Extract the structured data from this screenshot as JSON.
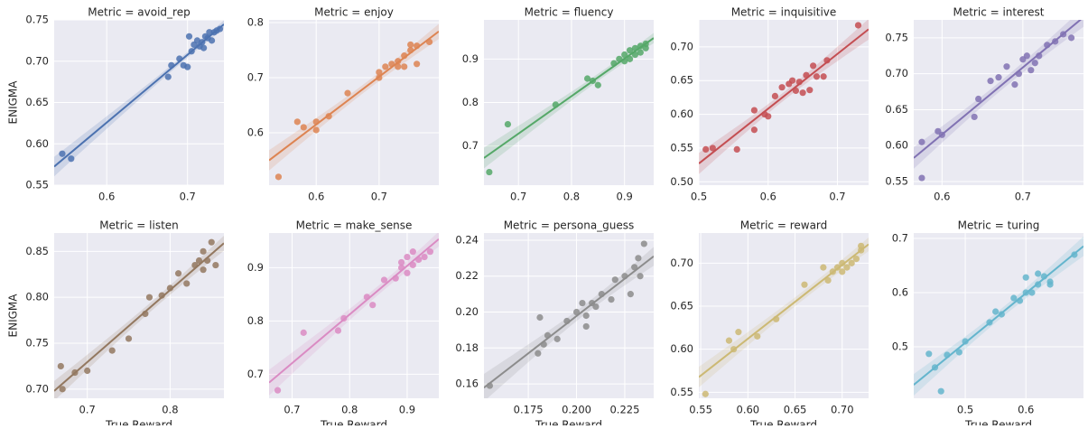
{
  "chart_data": [
    {
      "type": "scatter",
      "title": "Metric = avoid_rep",
      "ylabel": "ENIGMA",
      "color": "#4c72b0",
      "grid": true,
      "x": [
        0.545,
        0.556,
        0.676,
        0.68,
        0.69,
        0.695,
        0.7,
        0.702,
        0.705,
        0.708,
        0.712,
        0.715,
        0.718,
        0.72,
        0.722,
        0.725,
        0.727,
        0.73,
        0.733,
        0.736,
        0.74
      ],
      "y": [
        0.588,
        0.582,
        0.681,
        0.695,
        0.703,
        0.695,
        0.693,
        0.73,
        0.712,
        0.72,
        0.725,
        0.718,
        0.723,
        0.716,
        0.73,
        0.728,
        0.735,
        0.725,
        0.735,
        0.737,
        0.739
      ],
      "xlim": [
        0.535,
        0.745
      ],
      "xticks": [
        0.6,
        0.7
      ],
      "ylim": [
        0.55,
        0.75
      ],
      "yticks": [
        0.55,
        {
          "value": 0.6,
          "label": "0.60"
        },
        0.65,
        {
          "value": 0.7,
          "label": "0.70"
        },
        0.75
      ]
    },
    {
      "type": "scatter",
      "title": "Metric = enjoy",
      "color": "#dd8452",
      "grid": true,
      "x": [
        0.54,
        0.57,
        0.58,
        0.6,
        0.6,
        0.62,
        0.65,
        0.7,
        0.7,
        0.71,
        0.72,
        0.73,
        0.73,
        0.74,
        0.74,
        0.75,
        0.75,
        0.76,
        0.76,
        0.78
      ],
      "y": [
        0.52,
        0.62,
        0.61,
        0.62,
        0.605,
        0.63,
        0.672,
        0.7,
        0.71,
        0.72,
        0.725,
        0.73,
        0.72,
        0.72,
        0.74,
        0.76,
        0.75,
        0.758,
        0.725,
        0.765
      ],
      "xlim": [
        0.525,
        0.795
      ],
      "xticks": [
        0.6,
        0.7
      ],
      "ylim": [
        0.505,
        0.805
      ],
      "yticks": [
        0.6,
        0.7,
        0.8
      ]
    },
    {
      "type": "scatter",
      "title": "Metric = fluency",
      "color": "#55a868",
      "grid": true,
      "x": [
        0.645,
        0.68,
        0.77,
        0.83,
        0.84,
        0.85,
        0.88,
        0.89,
        0.9,
        0.9,
        0.91,
        0.91,
        0.92,
        0.92,
        0.93,
        0.93,
        0.94,
        0.94
      ],
      "y": [
        0.64,
        0.75,
        0.795,
        0.855,
        0.85,
        0.84,
        0.89,
        0.9,
        0.895,
        0.91,
        0.9,
        0.92,
        0.91,
        0.925,
        0.915,
        0.93,
        0.925,
        0.935
      ],
      "xlim": [
        0.635,
        0.955
      ],
      "xticks": [
        0.7,
        0.8,
        0.9
      ],
      "ylim": [
        0.61,
        0.99
      ],
      "yticks": [
        0.7,
        0.8,
        0.9
      ]
    },
    {
      "type": "scatter",
      "title": "Metric = inquisitive",
      "color": "#c44e52",
      "grid": true,
      "x": [
        0.51,
        0.52,
        0.555,
        0.58,
        0.58,
        0.595,
        0.6,
        0.61,
        0.62,
        0.63,
        0.635,
        0.64,
        0.645,
        0.65,
        0.655,
        0.66,
        0.665,
        0.67,
        0.68,
        0.685,
        0.73
      ],
      "y": [
        0.548,
        0.55,
        0.548,
        0.577,
        0.606,
        0.6,
        0.597,
        0.627,
        0.64,
        0.645,
        0.65,
        0.635,
        0.648,
        0.632,
        0.658,
        0.636,
        0.672,
        0.656,
        0.656,
        0.68,
        0.732
      ],
      "xlim": [
        0.5,
        0.745
      ],
      "xticks": [
        0.5,
        0.6,
        0.7
      ],
      "ylim": [
        0.495,
        0.74
      ],
      "yticks": [
        {
          "value": 0.5,
          "label": "0.50"
        },
        0.55,
        {
          "value": 0.6,
          "label": "0.60"
        },
        0.65,
        {
          "value": 0.7,
          "label": "0.70"
        }
      ]
    },
    {
      "type": "scatter",
      "title": "Metric = interest",
      "color": "#8172b3",
      "grid": true,
      "x": [
        0.575,
        0.575,
        0.595,
        0.6,
        0.64,
        0.645,
        0.66,
        0.67,
        0.68,
        0.69,
        0.695,
        0.7,
        0.705,
        0.71,
        0.715,
        0.72,
        0.73,
        0.74,
        0.75,
        0.76
      ],
      "y": [
        0.605,
        0.555,
        0.62,
        0.615,
        0.64,
        0.665,
        0.69,
        0.695,
        0.71,
        0.685,
        0.7,
        0.72,
        0.725,
        0.705,
        0.715,
        0.725,
        0.74,
        0.745,
        0.755,
        0.75
      ],
      "xlim": [
        0.565,
        0.775
      ],
      "xticks": [
        0.6,
        0.7
      ],
      "ylim": [
        0.545,
        0.775
      ],
      "yticks": [
        0.55,
        {
          "value": 0.6,
          "label": "0.60"
        },
        0.65,
        {
          "value": 0.7,
          "label": "0.70"
        },
        0.75
      ]
    },
    {
      "type": "scatter",
      "title": "Metric = listen",
      "xlabel": "True Reward",
      "ylabel": "ENIGMA",
      "color": "#937860",
      "grid": true,
      "x": [
        0.668,
        0.67,
        0.685,
        0.7,
        0.73,
        0.75,
        0.77,
        0.775,
        0.79,
        0.8,
        0.81,
        0.82,
        0.83,
        0.835,
        0.84,
        0.84,
        0.845,
        0.85,
        0.855
      ],
      "y": [
        0.725,
        0.7,
        0.718,
        0.72,
        0.742,
        0.755,
        0.782,
        0.8,
        0.802,
        0.81,
        0.826,
        0.815,
        0.835,
        0.84,
        0.85,
        0.83,
        0.84,
        0.86,
        0.835
      ],
      "xlim": [
        0.66,
        0.865
      ],
      "xticks": [
        0.7,
        0.8
      ],
      "ylim": [
        0.69,
        0.87
      ],
      "yticks": [
        {
          "value": 0.7,
          "label": "0.70"
        },
        0.75,
        {
          "value": 0.8,
          "label": "0.80"
        },
        0.85
      ]
    },
    {
      "type": "scatter",
      "title": "Metric = make_sense",
      "xlabel": "True Reward",
      "color": "#da8bc3",
      "grid": true,
      "x": [
        0.675,
        0.72,
        0.78,
        0.79,
        0.83,
        0.84,
        0.86,
        0.88,
        0.89,
        0.89,
        0.9,
        0.9,
        0.91,
        0.91,
        0.92,
        0.93,
        0.94
      ],
      "y": [
        0.67,
        0.778,
        0.782,
        0.805,
        0.845,
        0.83,
        0.877,
        0.88,
        0.9,
        0.91,
        0.89,
        0.92,
        0.905,
        0.93,
        0.915,
        0.92,
        0.93
      ],
      "xlim": [
        0.66,
        0.955
      ],
      "xticks": [
        0.7,
        0.8,
        0.9
      ],
      "ylim": [
        0.655,
        0.965
      ],
      "yticks": [
        0.7,
        0.8,
        0.9
      ]
    },
    {
      "type": "scatter",
      "title": "Metric = persona_guess",
      "xlabel": "True Reward",
      "color": "#8c8c8c",
      "grid": true,
      "x": [
        0.155,
        0.18,
        0.181,
        0.183,
        0.185,
        0.19,
        0.195,
        0.2,
        0.203,
        0.205,
        0.205,
        0.208,
        0.21,
        0.213,
        0.218,
        0.22,
        0.225,
        0.228,
        0.23,
        0.232,
        0.233,
        0.235
      ],
      "y": [
        0.159,
        0.177,
        0.197,
        0.182,
        0.187,
        0.185,
        0.195,
        0.2,
        0.205,
        0.198,
        0.192,
        0.205,
        0.203,
        0.21,
        0.207,
        0.218,
        0.22,
        0.21,
        0.225,
        0.23,
        0.22,
        0.238
      ],
      "xlim": [
        0.152,
        0.24
      ],
      "xticks": [
        0.175,
        {
          "value": 0.2,
          "label": "0.200"
        },
        0.225
      ],
      "ylim": [
        0.152,
        0.244
      ],
      "yticks": [
        0.16,
        0.18,
        {
          "value": 0.2,
          "label": "0.20"
        },
        0.22,
        0.24
      ]
    },
    {
      "type": "scatter",
      "title": "Metric = reward",
      "xlabel": "True Reward",
      "color": "#ccb974",
      "grid": true,
      "x": [
        0.555,
        0.58,
        0.585,
        0.59,
        0.61,
        0.63,
        0.66,
        0.68,
        0.685,
        0.69,
        0.695,
        0.7,
        0.7,
        0.705,
        0.71,
        0.715,
        0.72,
        0.72
      ],
      "y": [
        0.548,
        0.61,
        0.6,
        0.62,
        0.615,
        0.635,
        0.675,
        0.695,
        0.68,
        0.69,
        0.695,
        0.7,
        0.69,
        0.695,
        0.7,
        0.705,
        0.715,
        0.72
      ],
      "xlim": [
        0.548,
        0.728
      ],
      "xticks": [
        0.55,
        {
          "value": 0.6,
          "label": "0.60"
        },
        0.65,
        {
          "value": 0.7,
          "label": "0.70"
        }
      ],
      "ylim": [
        0.543,
        0.735
      ],
      "yticks": [
        0.55,
        {
          "value": 0.6,
          "label": "0.60"
        },
        0.65,
        {
          "value": 0.7,
          "label": "0.70"
        }
      ]
    },
    {
      "type": "scatter",
      "title": "Metric = turing",
      "xlabel": "True Reward",
      "color": "#64b5cd",
      "grid": true,
      "x": [
        0.44,
        0.45,
        0.46,
        0.47,
        0.49,
        0.5,
        0.54,
        0.55,
        0.56,
        0.58,
        0.59,
        0.6,
        0.6,
        0.61,
        0.62,
        0.62,
        0.63,
        0.64,
        0.64,
        0.68
      ],
      "y": [
        0.487,
        0.462,
        0.418,
        0.485,
        0.49,
        0.51,
        0.545,
        0.565,
        0.56,
        0.59,
        0.585,
        0.6,
        0.628,
        0.6,
        0.615,
        0.635,
        0.63,
        0.62,
        0.615,
        0.67
      ],
      "xlim": [
        0.415,
        0.695
      ],
      "xticks": [
        0.5,
        0.6
      ],
      "ylim": [
        0.405,
        0.71
      ],
      "yticks": [
        0.5,
        0.6,
        0.7
      ]
    }
  ]
}
